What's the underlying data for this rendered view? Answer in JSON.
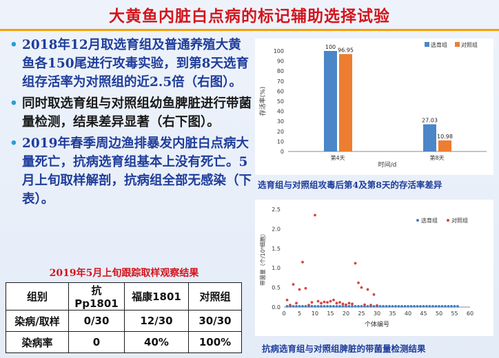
{
  "title": "大黄鱼内脏白点病的标记辅助选择试验",
  "bullets": [
    {
      "text": "2018年12月取选育组及普通养殖大黄鱼各150尾进行攻毒实验，到第8天选育组存活率为对照组的近2.5倍（右图）。"
    },
    {
      "text": "同时取选育组与对照组幼鱼脾脏进行带菌量检测，结果差异显著（右下图）。"
    },
    {
      "text": "2019年春季周边渔排暴发内脏白点病大量死亡，抗病选育组基本上没有死亡。5月上旬取样解剖，抗病组全部无感染（下表）。"
    }
  ],
  "table": {
    "title": "2019年5月上旬跟踪取样观察结果",
    "headers": [
      "组别",
      "抗Pp1801",
      "福康1801",
      "对照组"
    ],
    "rows": [
      [
        "染病/取样",
        "0/30",
        "12/30",
        "30/30"
      ],
      [
        "染病率",
        "0",
        "40%",
        "100%"
      ]
    ]
  },
  "chart_captions": {
    "bar": "选育组与对照组攻毒后第4及第8天的存活率差异",
    "scatter": "抗病选育组与对照组脾脏的带菌量检测结果"
  },
  "chart_data": [
    {
      "type": "bar",
      "categories": [
        "第4天",
        "第8天"
      ],
      "series": [
        {
          "name": "选育组",
          "values": [
            100,
            27.03
          ],
          "color": "#4a86c8"
        },
        {
          "name": "对照组",
          "values": [
            96.95,
            10.98
          ],
          "color": "#ed7d31"
        }
      ],
      "data_labels": [
        "100",
        "96.95",
        "27.03",
        "10.98"
      ],
      "xlabel": "时间/d",
      "ylabel": "存活率(%)",
      "ylim": [
        0,
        100
      ],
      "yticks": [
        0,
        10,
        20,
        30,
        40,
        50,
        60,
        70,
        80,
        90,
        100
      ],
      "legend": "top-right",
      "grid": false
    },
    {
      "type": "scatter",
      "xlabel": "个体编号",
      "ylabel": "带菌量（个/10⁶细胞）",
      "xlim": [
        0,
        60
      ],
      "ylim": [
        0,
        2.5
      ],
      "xticks": [
        0,
        5,
        10,
        15,
        20,
        25,
        30,
        35,
        40,
        45,
        50,
        55,
        60
      ],
      "yticks": [
        0.0,
        0.5,
        1.0,
        1.5,
        2.0,
        2.5
      ],
      "yticklabels": [
        "0.0",
        "0.5",
        "1.0",
        "1.5",
        "2.0",
        "2.5"
      ],
      "legend": "top-right",
      "grid": false,
      "series": [
        {
          "name": "选育组",
          "color": "#3f7fc4",
          "points": [
            [
              1,
              0.02
            ],
            [
              2,
              0.02
            ],
            [
              3,
              0.02
            ],
            [
              4,
              0.02
            ],
            [
              5,
              0.02
            ],
            [
              6,
              0.02
            ],
            [
              7,
              0.02
            ],
            [
              8,
              0.02
            ],
            [
              9,
              0.02
            ],
            [
              10,
              0.02
            ],
            [
              11,
              0.02
            ],
            [
              12,
              0.02
            ],
            [
              13,
              0.02
            ],
            [
              14,
              0.02
            ],
            [
              15,
              0.02
            ],
            [
              16,
              0.02
            ],
            [
              17,
              0.02
            ],
            [
              18,
              0.02
            ],
            [
              19,
              0.02
            ],
            [
              20,
              0.02
            ],
            [
              21,
              0.02
            ],
            [
              22,
              0.02
            ],
            [
              23,
              0.02
            ],
            [
              24,
              0.02
            ],
            [
              25,
              0.02
            ],
            [
              26,
              0.02
            ],
            [
              27,
              0.02
            ],
            [
              28,
              0.02
            ],
            [
              29,
              0.02
            ],
            [
              30,
              0.02
            ],
            [
              31,
              0.02
            ],
            [
              32,
              0.02
            ],
            [
              33,
              0.02
            ],
            [
              34,
              0.02
            ],
            [
              35,
              0.02
            ],
            [
              36,
              0.02
            ],
            [
              37,
              0.02
            ],
            [
              38,
              0.02
            ],
            [
              39,
              0.02
            ],
            [
              40,
              0.02
            ],
            [
              41,
              0.02
            ],
            [
              42,
              0.02
            ],
            [
              43,
              0.02
            ],
            [
              44,
              0.02
            ],
            [
              45,
              0.02
            ],
            [
              46,
              0.02
            ],
            [
              47,
              0.02
            ],
            [
              48,
              0.02
            ],
            [
              49,
              0.02
            ],
            [
              50,
              0.02
            ],
            [
              51,
              0.02
            ],
            [
              52,
              0.02
            ],
            [
              53,
              0.02
            ],
            [
              54,
              0.02
            ],
            [
              55,
              0.02
            ],
            [
              56,
              0.02
            ]
          ]
        },
        {
          "name": "对照组",
          "color": "#d64541",
          "points": [
            [
              1,
              0.18
            ],
            [
              2,
              0.05
            ],
            [
              3,
              0.58
            ],
            [
              4,
              0.1
            ],
            [
              5,
              0.45
            ],
            [
              6,
              1.15
            ],
            [
              7,
              0.48
            ],
            [
              8,
              0.05
            ],
            [
              9,
              0.12
            ],
            [
              10,
              2.35
            ],
            [
              11,
              0.15
            ],
            [
              12,
              0.1
            ],
            [
              13,
              0.13
            ],
            [
              14,
              0.12
            ],
            [
              15,
              0.15
            ],
            [
              16,
              0.18
            ],
            [
              17,
              0.1
            ],
            [
              18,
              0.12
            ],
            [
              19,
              0.08
            ],
            [
              20,
              0.06
            ],
            [
              21,
              0.1
            ],
            [
              22,
              0.08
            ],
            [
              23,
              1.12
            ],
            [
              24,
              0.62
            ],
            [
              25,
              0.5
            ],
            [
              26,
              0.06
            ],
            [
              27,
              0.45
            ],
            [
              28,
              0.05
            ],
            [
              29,
              0.32
            ],
            [
              30,
              0.04
            ]
          ]
        }
      ]
    }
  ]
}
